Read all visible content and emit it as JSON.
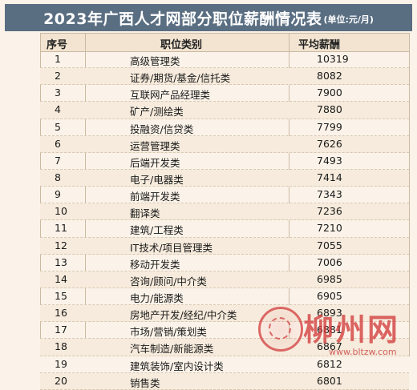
{
  "title": "2023年广西人才网部分职位薪酬情况表",
  "unit": "(单位:元/月)",
  "columns": [
    "序号",
    "职位类别",
    "平均薪酬"
  ],
  "rows": [
    {
      "no": "1",
      "category": "高级管理类",
      "salary": "10319"
    },
    {
      "no": "2",
      "category": "证券/期货/基金/信托类",
      "salary": "8082"
    },
    {
      "no": "3",
      "category": "互联网产品经理类",
      "salary": "7900"
    },
    {
      "no": "4",
      "category": "矿产/测绘类",
      "salary": "7880"
    },
    {
      "no": "5",
      "category": "投融资/信贷类",
      "salary": "7799"
    },
    {
      "no": "6",
      "category": "运营管理类",
      "salary": "7626"
    },
    {
      "no": "7",
      "category": "后端开发类",
      "salary": "7493"
    },
    {
      "no": "8",
      "category": "电子/电器类",
      "salary": "7414"
    },
    {
      "no": "9",
      "category": "前端开发类",
      "salary": "7343"
    },
    {
      "no": "10",
      "category": "翻译类",
      "salary": "7236"
    },
    {
      "no": "11",
      "category": "建筑/工程类",
      "salary": "7210"
    },
    {
      "no": "12",
      "category": "IT技术/项目管理类",
      "salary": "7055"
    },
    {
      "no": "13",
      "category": "移动开发类",
      "salary": "7006"
    },
    {
      "no": "14",
      "category": "咨询/顾问/中介类",
      "salary": "6985"
    },
    {
      "no": "15",
      "category": "电力/能源类",
      "salary": "6905"
    },
    {
      "no": "16",
      "category": "房地产开发/经纪/中介类",
      "salary": "6893"
    },
    {
      "no": "17",
      "category": "市场/营销/策划类",
      "salary": "6881"
    },
    {
      "no": "18",
      "category": "汽车制造/新能源类",
      "salary": "6867"
    },
    {
      "no": "19",
      "category": "建筑装饰/室内设计类",
      "salary": "6812"
    },
    {
      "no": "20",
      "category": "销售类",
      "salary": "6801"
    }
  ],
  "watermark": {
    "name": "柳州网",
    "url": "www.bltzw.com"
  },
  "colors": {
    "title_bg": "#5a6e82",
    "page_bg": "#fbf3e9",
    "header_bg": "#f2e4d0",
    "watermark": "#d23b3b"
  }
}
